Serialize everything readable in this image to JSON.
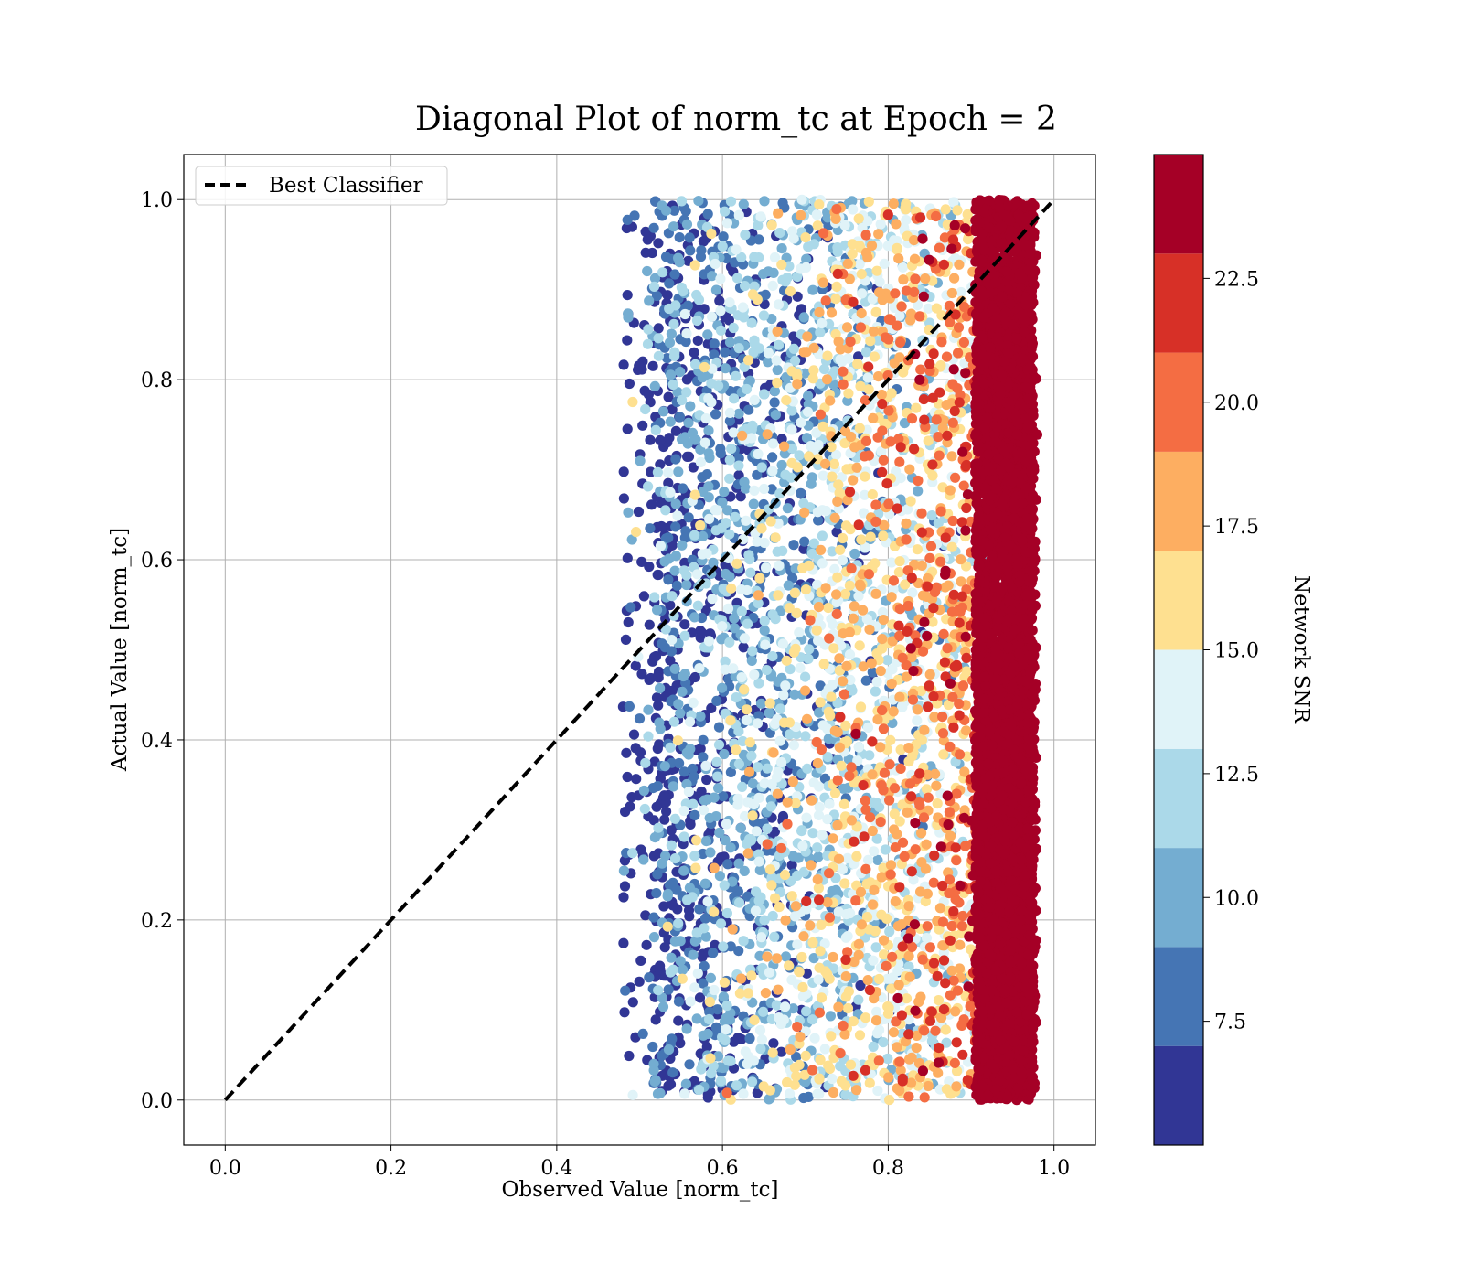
{
  "chart_data": {
    "type": "scatter",
    "title": "Diagonal Plot of norm_tc at Epoch = 2",
    "xlabel": "Observed Value [norm_tc]",
    "ylabel": "Actual Value [norm_tc]",
    "xlim": [
      -0.05,
      1.05
    ],
    "ylim": [
      -0.05,
      1.05
    ],
    "x_ticks": [
      "0.0",
      "0.2",
      "0.4",
      "0.6",
      "0.8",
      "1.0"
    ],
    "y_ticks": [
      "0.0",
      "0.2",
      "0.4",
      "0.6",
      "0.8",
      "1.0"
    ],
    "grid": true,
    "legend": {
      "placement": "top-left",
      "entries": [
        {
          "label": "Best Classifier",
          "style": "black dashed line"
        }
      ]
    },
    "reference_line": {
      "label": "Best Classifier",
      "x": [
        0.0,
        1.0
      ],
      "y": [
        0.0,
        1.0
      ],
      "color": "#000000"
    },
    "colorbar": {
      "label": "Network SNR",
      "range": [
        5.0,
        25.0
      ],
      "tick_labels": [
        "7.5",
        "10.0",
        "12.5",
        "15.0",
        "17.5",
        "20.0",
        "22.5"
      ],
      "tick_values": [
        7.5,
        10.0,
        12.5,
        15.0,
        17.5,
        20.0,
        22.5
      ],
      "band_edges": [
        5.0,
        7.0,
        9.0,
        11.0,
        13.0,
        15.0,
        17.0,
        19.0,
        21.0,
        23.0,
        25.0
      ],
      "band_colors": [
        "#313695",
        "#4575b4",
        "#74add1",
        "#abd9e9",
        "#e0f3f8",
        "#fee090",
        "#fdae61",
        "#f46d43",
        "#d73027",
        "#a50026"
      ]
    },
    "point_distribution": {
      "x_range": [
        0.48,
        0.98
      ],
      "y_range": [
        0.0,
        1.0
      ],
      "snr_trend": "SNR increases with observed value; dense high-SNR (>23) block at observed 0.91–0.98"
    }
  }
}
